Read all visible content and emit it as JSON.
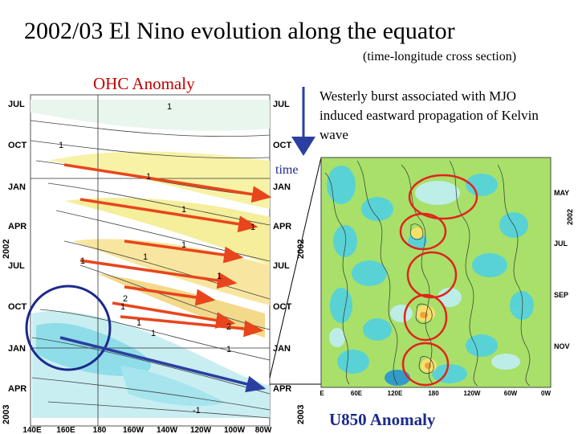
{
  "title": "2002/03 El Nino evolution along the equator",
  "subtitle": "(time-longitude cross section)",
  "ohc_label": "OHC Anomaly",
  "caption": "Westerly burst associated with MJO induced eastward propagation of Kelvin wave",
  "time_label": "time",
  "u850_label": "U850 Anomaly",
  "ohc_panel": {
    "left_month_labels": [
      "JUL",
      "OCT",
      "JAN",
      "APR",
      "JUL",
      "OCT",
      "JAN",
      "APR"
    ],
    "right_month_labels": [
      "JUL",
      "OCT",
      "JAN",
      "APR",
      "JUL",
      "OCT",
      "JAN",
      "APR"
    ],
    "year_labels_left": [
      "2002",
      "2003"
    ],
    "year_labels_right": [
      "2002",
      "2003"
    ],
    "x_tick_labels": [
      "140E",
      "160E",
      "180",
      "160W",
      "140W",
      "120W",
      "100W",
      "80W"
    ],
    "contour_labels": [
      "1",
      "1",
      "1",
      "1",
      "1",
      "1",
      "1",
      "1",
      "1",
      "1",
      "2",
      "1",
      "1",
      "2",
      "1",
      "-1"
    ],
    "colors": {
      "warm": "#f7f2a6",
      "yellow": "#f5ee9a",
      "cold": "#8fdde8",
      "cool": "#c9eef2",
      "arrow_red": "#e8451c",
      "arrow_blue": "#2a3fa0"
    }
  },
  "u850_panel": {
    "right_month_labels": [
      "MAY",
      "JUL",
      "SEP",
      "NOV"
    ],
    "year_label": "2002",
    "x_tick_labels": [
      "E",
      "60E",
      "120E",
      "180",
      "120W",
      "60W",
      "0W"
    ],
    "colors": {
      "green": "#a8e06a",
      "cyan": "#4cd0e8",
      "lightcyan": "#bff0f5",
      "red_circle": "#e0241c"
    }
  }
}
